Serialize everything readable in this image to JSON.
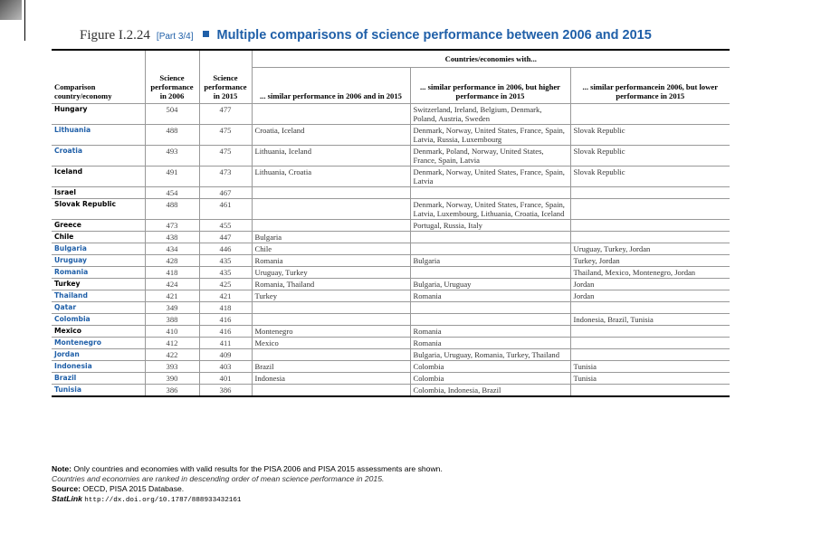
{
  "header": {
    "figure": "Figure I.2.24",
    "part": "[Part 3/4]",
    "title": "Multiple comparisons of science performance between 2006 and 2015"
  },
  "table": {
    "columns": {
      "country": "Comparison country/economy",
      "score_2006": "Science performance in 2006",
      "score_2015": "Science performance in 2015",
      "group": "Countries/economies with...",
      "similar": "... similar performance in 2006 and in 2015",
      "higher": "... similar performance in 2006, but higher performance in 2015",
      "lower": "... similar performancein 2006, but lower performance in 2015"
    },
    "rows": [
      {
        "name": "Hungary",
        "color": "#000000",
        "score_2006": 504,
        "score_2015": 477,
        "similar": null,
        "higher": "Switzerland, Ireland, Belgium, Denmark, Poland, Austria, Sweden",
        "lower": null
      },
      {
        "name": "Lithuania",
        "color": "#1f5fa8",
        "score_2006": 488,
        "score_2015": 475,
        "similar": "Croatia, Iceland",
        "higher": "Denmark, Norway, United States, France, Spain, Latvia, Russia, Luxembourg",
        "lower": "Slovak Republic"
      },
      {
        "name": "Croatia",
        "color": "#1f5fa8",
        "score_2006": 493,
        "score_2015": 475,
        "similar": "Lithuania, Iceland",
        "higher": "Denmark, Poland, Norway, United States, France, Spain, Latvia",
        "lower": "Slovak Republic"
      },
      {
        "name": "Iceland",
        "color": "#000000",
        "score_2006": 491,
        "score_2015": 473,
        "similar": "Lithuania, Croatia",
        "higher": "Denmark, Norway, United States, France, Spain, Latvia",
        "lower": "Slovak Republic"
      },
      {
        "name": "Israel",
        "color": "#000000",
        "score_2006": 454,
        "score_2015": 467,
        "similar": null,
        "higher": null,
        "lower": null
      },
      {
        "name": "Slovak Republic",
        "color": "#000000",
        "score_2006": 488,
        "score_2015": 461,
        "similar": null,
        "higher": "Denmark, Norway, United States, France, Spain, Latvia, Luxembourg, Lithuania, Croatia, Iceland",
        "lower": null
      },
      {
        "name": "Greece",
        "color": "#000000",
        "score_2006": 473,
        "score_2015": 455,
        "similar": null,
        "higher": "Portugal, Russia, Italy",
        "lower": null
      },
      {
        "name": "Chile",
        "color": "#000000",
        "score_2006": 438,
        "score_2015": 447,
        "similar": "Bulgaria",
        "higher": null,
        "lower": null
      },
      {
        "name": "Bulgaria",
        "color": "#1f5fa8",
        "score_2006": 434,
        "score_2015": 446,
        "similar": "Chile",
        "higher": null,
        "lower": "Uruguay, Turkey, Jordan"
      },
      {
        "name": "Uruguay",
        "color": "#1f5fa8",
        "score_2006": 428,
        "score_2015": 435,
        "similar": "Romania",
        "higher": "Bulgaria",
        "lower": "Turkey, Jordan"
      },
      {
        "name": "Romania",
        "color": "#1f5fa8",
        "score_2006": 418,
        "score_2015": 435,
        "similar": "Uruguay, Turkey",
        "higher": null,
        "lower": "Thailand, Mexico, Montenegro, Jordan"
      },
      {
        "name": "Turkey",
        "color": "#000000",
        "score_2006": 424,
        "score_2015": 425,
        "similar": "Romania, Thailand",
        "higher": "Bulgaria, Uruguay",
        "lower": "Jordan"
      },
      {
        "name": "Thailand",
        "color": "#1f5fa8",
        "score_2006": 421,
        "score_2015": 421,
        "similar": "Turkey",
        "higher": "Romania",
        "lower": "Jordan"
      },
      {
        "name": "Qatar",
        "color": "#1f5fa8",
        "score_2006": 349,
        "score_2015": 418,
        "similar": null,
        "higher": null,
        "lower": null
      },
      {
        "name": "Colombia",
        "color": "#1f5fa8",
        "score_2006": 388,
        "score_2015": 416,
        "similar": null,
        "higher": null,
        "lower": "Indonesia, Brazil, Tunisia"
      },
      {
        "name": "Mexico",
        "color": "#000000",
        "score_2006": 410,
        "score_2015": 416,
        "similar": "Montenegro",
        "higher": "Romania",
        "lower": null
      },
      {
        "name": "Montenegro",
        "color": "#1f5fa8",
        "score_2006": 412,
        "score_2015": 411,
        "similar": "Mexico",
        "higher": "Romania",
        "lower": null
      },
      {
        "name": "Jordan",
        "color": "#1f5fa8",
        "score_2006": 422,
        "score_2015": 409,
        "similar": null,
        "higher": "Bulgaria, Uruguay, Romania, Turkey, Thailand",
        "lower": null
      },
      {
        "name": "Indonesia",
        "color": "#1f5fa8",
        "score_2006": 393,
        "score_2015": 403,
        "similar": "Brazil",
        "higher": "Colombia",
        "lower": "Tunisia"
      },
      {
        "name": "Brazil",
        "color": "#1f5fa8",
        "score_2006": 390,
        "score_2015": 401,
        "similar": "Indonesia",
        "higher": "Colombia",
        "lower": "Tunisia"
      },
      {
        "name": "Tunisia",
        "color": "#1f5fa8",
        "score_2006": 386,
        "score_2015": 386,
        "similar": null,
        "higher": "Colombia, Indonesia, Brazil",
        "lower": null
      }
    ]
  },
  "notes": {
    "note_label": "Note:",
    "note": "Only countries and economies with valid results for the PISA 2006 and PISA 2015 assessments are shown.",
    "ranking": "Countries and economies are ranked in descending order of mean science performance in 2015.",
    "source_label": "Source:",
    "source": "OECD, PISA 2015 Database.",
    "statlink": "StatLink",
    "url": "http://dx.doi.org/10.1787/888933432161"
  }
}
